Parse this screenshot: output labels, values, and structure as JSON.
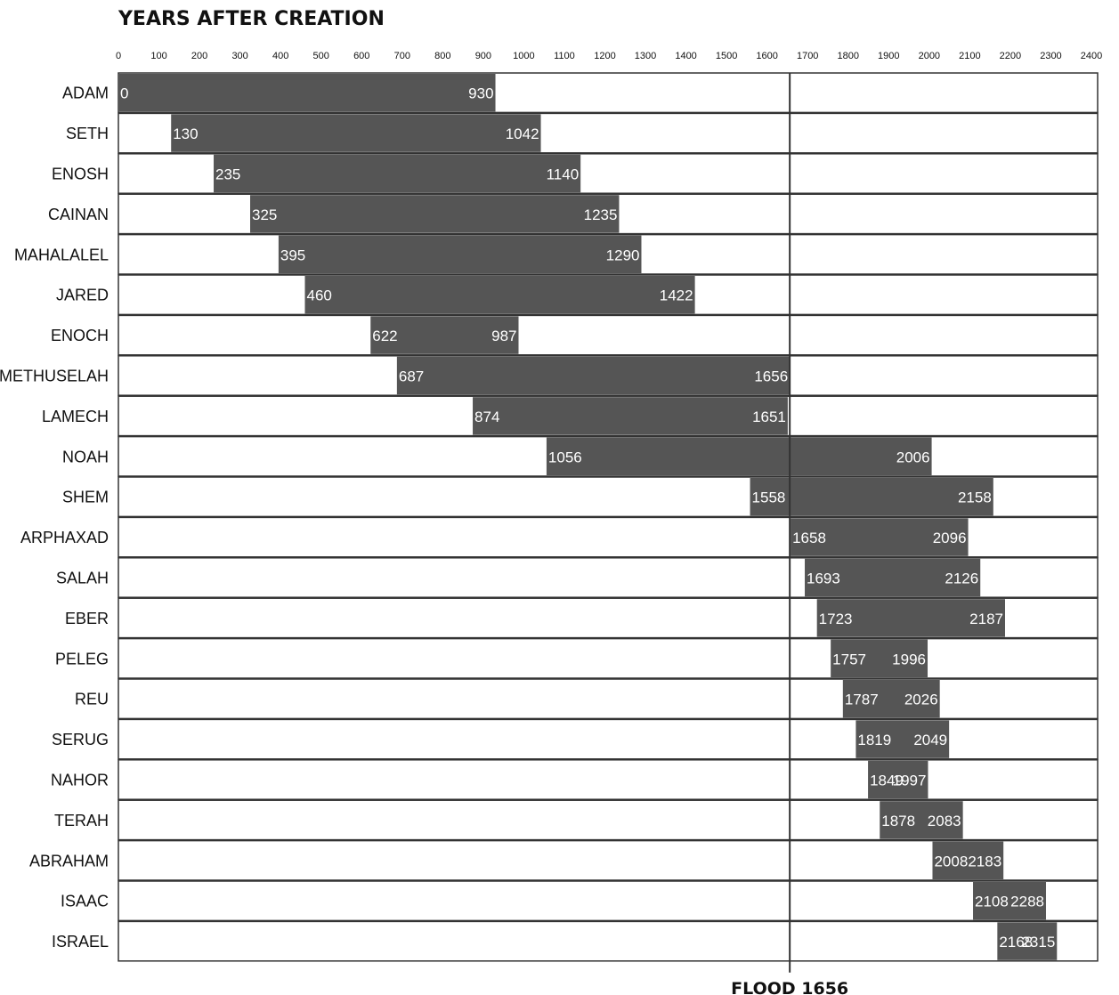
{
  "chart_data": {
    "type": "bar",
    "orientation": "horizontal-range",
    "title": "YEARS AFTER CREATION",
    "xlim": [
      0,
      2400
    ],
    "x_ticks": [
      0,
      100,
      200,
      300,
      400,
      500,
      600,
      700,
      800,
      900,
      1000,
      1100,
      1200,
      1300,
      1400,
      1500,
      1600,
      1700,
      1800,
      1900,
      2000,
      2100,
      2200,
      2300,
      2400
    ],
    "people": [
      {
        "name": "ADAM",
        "start": 0,
        "end": 930
      },
      {
        "name": "SETH",
        "start": 130,
        "end": 1042
      },
      {
        "name": "ENOSH",
        "start": 235,
        "end": 1140
      },
      {
        "name": "CAINAN",
        "start": 325,
        "end": 1235
      },
      {
        "name": "MAHALALEL",
        "start": 395,
        "end": 1290
      },
      {
        "name": "JARED",
        "start": 460,
        "end": 1422
      },
      {
        "name": "ENOCH",
        "start": 622,
        "end": 987
      },
      {
        "name": "METHUSELAH",
        "start": 687,
        "end": 1656
      },
      {
        "name": "LAMECH",
        "start": 874,
        "end": 1651
      },
      {
        "name": "NOAH",
        "start": 1056,
        "end": 2006
      },
      {
        "name": "SHEM",
        "start": 1558,
        "end": 2158
      },
      {
        "name": "ARPHAXAD",
        "start": 1658,
        "end": 2096
      },
      {
        "name": "SALAH",
        "start": 1693,
        "end": 2126
      },
      {
        "name": "EBER",
        "start": 1723,
        "end": 2187
      },
      {
        "name": "PELEG",
        "start": 1757,
        "end": 1996
      },
      {
        "name": "REU",
        "start": 1787,
        "end": 2026
      },
      {
        "name": "SERUG",
        "start": 1819,
        "end": 2049
      },
      {
        "name": "NAHOR",
        "start": 1849,
        "end": 1997
      },
      {
        "name": "TERAH",
        "start": 1878,
        "end": 2083
      },
      {
        "name": "ABRAHAM",
        "start": 2008,
        "end": 2183
      },
      {
        "name": "ISAAC",
        "start": 2108,
        "end": 2288
      },
      {
        "name": "ISRAEL",
        "start": 2168,
        "end": 2315
      }
    ],
    "annotations": [
      {
        "label": "FLOOD 1656",
        "x": 1656
      }
    ],
    "colors": {
      "bar": "#555555",
      "grid": "#333333",
      "text": "#111111",
      "bar_text": "#ffffff"
    }
  }
}
